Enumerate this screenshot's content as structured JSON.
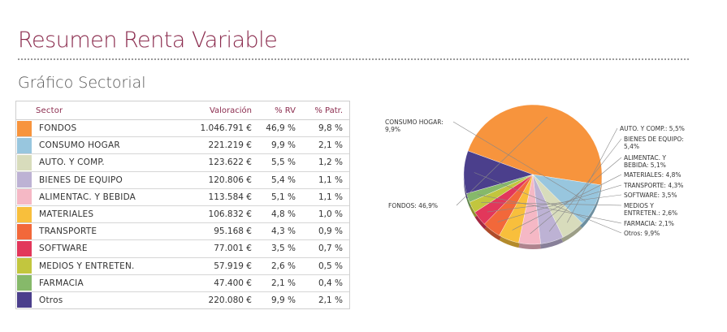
{
  "page": {
    "title": "Resumen Renta Variable",
    "section_title": "Gráfico Sectorial"
  },
  "table": {
    "headers": {
      "sector": "Sector",
      "valoracion": "Valoración",
      "rv": "% RV",
      "patr": "% Patr."
    },
    "rows": [
      {
        "sector": "FONDOS",
        "valoracion": "1.046.791 €",
        "rv": "46,9 %",
        "patr": "9,8 %",
        "color": "#f7943d"
      },
      {
        "sector": "CONSUMO HOGAR",
        "valoracion": "221.219 €",
        "rv": "9,9 %",
        "patr": "2,1 %",
        "color": "#98c6de"
      },
      {
        "sector": "AUTO. Y COMP.",
        "valoracion": "123.622 €",
        "rv": "5,5 %",
        "patr": "1,2 %",
        "color": "#d8dcbc"
      },
      {
        "sector": "BIENES DE EQUIPO",
        "valoracion": "120.806 €",
        "rv": "5,4 %",
        "patr": "1,1 %",
        "color": "#bdb2d4"
      },
      {
        "sector": "ALIMENTAC. Y BEBIDA",
        "valoracion": "113.584 €",
        "rv": "5,1 %",
        "patr": "1,1 %",
        "color": "#f5b8c5"
      },
      {
        "sector": "MATERIALES",
        "valoracion": "106.832 €",
        "rv": "4,8 %",
        "patr": "1,0 %",
        "color": "#f8bf3c"
      },
      {
        "sector": "TRANSPORTE",
        "valoracion": "95.168 €",
        "rv": "4,3 %",
        "patr": "0,9 %",
        "color": "#f2683a"
      },
      {
        "sector": "SOFTWARE",
        "valoracion": "77.001 €",
        "rv": "3,5 %",
        "patr": "0,7 %",
        "color": "#e2375b"
      },
      {
        "sector": "MEDIOS Y ENTRETEN.",
        "valoracion": "57.919 €",
        "rv": "2,6 %",
        "patr": "0,5 %",
        "color": "#c2c63e"
      },
      {
        "sector": "FARMACIA",
        "valoracion": "47.400 €",
        "rv": "2,1 %",
        "patr": "0,4 %",
        "color": "#86b96a"
      },
      {
        "sector": "Otros",
        "valoracion": "220.080 €",
        "rv": "9,9 %",
        "patr": "2,1 %",
        "color": "#4b3f8c"
      }
    ]
  },
  "chart_data": {
    "type": "pie",
    "slices": [
      {
        "label_lines": [
          "FONDOS: 46,9%"
        ],
        "value": 46.9,
        "color": "#f7943d"
      },
      {
        "label_lines": [
          "CONSUMO HOGAR:",
          "9,9%"
        ],
        "value": 9.9,
        "color": "#98c6de"
      },
      {
        "label_lines": [
          "AUTO. Y COMP.: 5,5%"
        ],
        "value": 5.5,
        "color": "#d8dcbc"
      },
      {
        "label_lines": [
          "BIENES DE EQUIPO:",
          "5,4%"
        ],
        "value": 5.4,
        "color": "#bdb2d4"
      },
      {
        "label_lines": [
          "ALIMENTAC. Y",
          "BEBIDA: 5,1%"
        ],
        "value": 5.1,
        "color": "#f5b8c5"
      },
      {
        "label_lines": [
          "MATERIALES: 4,8%"
        ],
        "value": 4.8,
        "color": "#f8bf3c"
      },
      {
        "label_lines": [
          "TRANSPORTE: 4,3%"
        ],
        "value": 4.3,
        "color": "#f2683a"
      },
      {
        "label_lines": [
          "SOFTWARE: 3,5%"
        ],
        "value": 3.5,
        "color": "#e2375b"
      },
      {
        "label_lines": [
          "MEDIOS Y",
          "ENTRETEN.: 2,6%"
        ],
        "value": 2.6,
        "color": "#c2c63e"
      },
      {
        "label_lines": [
          "FARMACIA: 2,1%"
        ],
        "value": 2.1,
        "color": "#86b96a"
      },
      {
        "label_lines": [
          "Otros: 9,9%"
        ],
        "value": 9.9,
        "color": "#4b3f8c"
      }
    ]
  }
}
